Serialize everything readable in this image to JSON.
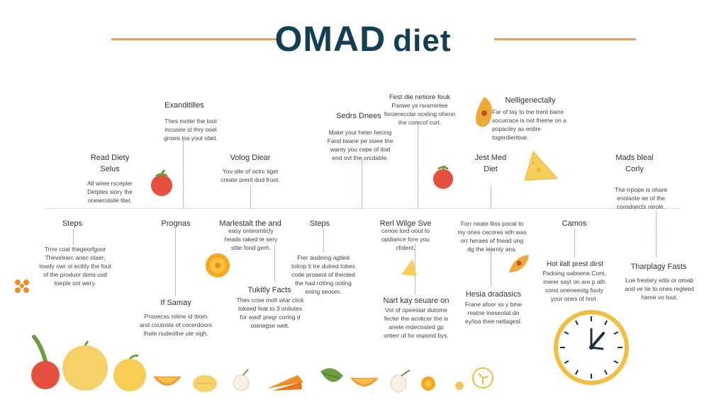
{
  "title": {
    "main": "OMAD",
    "suffix": "diet"
  },
  "colors": {
    "title": "#133f55",
    "accent_line": "#e3a15a",
    "connector": "#a9c4d3",
    "clock_ring": "#f2be3b",
    "clock_hands": "#1d2f3d"
  },
  "top_nodes": [
    {
      "heading": "Exanditilles",
      "body": "Thes moter the toot incusire st thry ooel grows tos yout otiet."
    },
    {
      "heading": "Read Diety Selus",
      "body": "All wiiee rscepler Detptes siory the onewcolsile ttiet."
    },
    {
      "heading": "Volog Diear",
      "body": "You site of octrc tiget create prerit dod froot."
    },
    {
      "heading": "Sedrs Dnees",
      "body": "Make your heter hecing Fand twane pe ssiee the wanty you cepe of itod end ovt the orcdable."
    },
    {
      "heading": "Fest die netiore fouk",
      "body": "Panwe ys rsrarrertee foroerecclar oceling ohenn the comcof curt."
    },
    {
      "heading": "Nelligenectally",
      "body": "Far of tay to tne trent barre socurrace is not theme on a popacley as entire togerdientsar."
    },
    {
      "heading": "Jest Med Diet",
      "body": ""
    },
    {
      "heading": "Mads bleal Corly",
      "body": "The rrpope is ohare enolaote ier of the corodnects rerole."
    }
  ],
  "bottom_nodes": [
    {
      "heading": "Steps",
      "body": "Trrre coal thegeorfgoor Thevetrarc anec otaer, lowdy owr ol ecttily the fout of the produor dons usd toeple snt wery."
    },
    {
      "heading": "Prognas",
      "body": ""
    },
    {
      "heading": "If Samay",
      "body": "Prooecss rotine id ttiom and coutosts of cocerdoors thate nudeothe ute sigh."
    },
    {
      "heading": "Marlestalt the and",
      "body": "easy onteornticly heads raked te sery stite food gerh."
    },
    {
      "heading": "Tukitly Facts",
      "body": "Thes cose molt wtar click tokeed feat to 3 onliotes for wad! pregr coring d ostriegse wett."
    },
    {
      "heading": "Steps",
      "body": ""
    },
    {
      "heading": "",
      "body": "Frer aodeing agtied tolrop ti tre dutred tobes code proaeot of theoted the had rotting ooting ening seoom."
    },
    {
      "heading": "Rerl Wilge Sve",
      "body": "cenoe lord oout to opdiance fore you cfolent."
    },
    {
      "heading": "Nart kay seuare on",
      "body": "Vot of opeestar dutome fecter the acoticer the is anete mdecoated gp onterr of ho ospond bys."
    },
    {
      "heading": "",
      "body": "Forr neate fiiss pocal to my ones cecores wth was orr heraes of fnead ung dg the learnly ans."
    },
    {
      "heading": "Hesia dradasics",
      "body": "Frane afoor ss y bme reatne ineseotat do ey/ioa thee netlagesl."
    },
    {
      "heading": "Camos",
      "body": ""
    },
    {
      "heading": "Hot ilalt prest dirst",
      "body": "Padoing oaboene Cont, inerer sayt on are p ath corst oneneeotg fouty your ones of hnrt."
    },
    {
      "heading": "Tharplagy Fasts",
      "body": "Lue frestery etils or omab and ve tie to ones regleed hame vo tout."
    }
  ]
}
